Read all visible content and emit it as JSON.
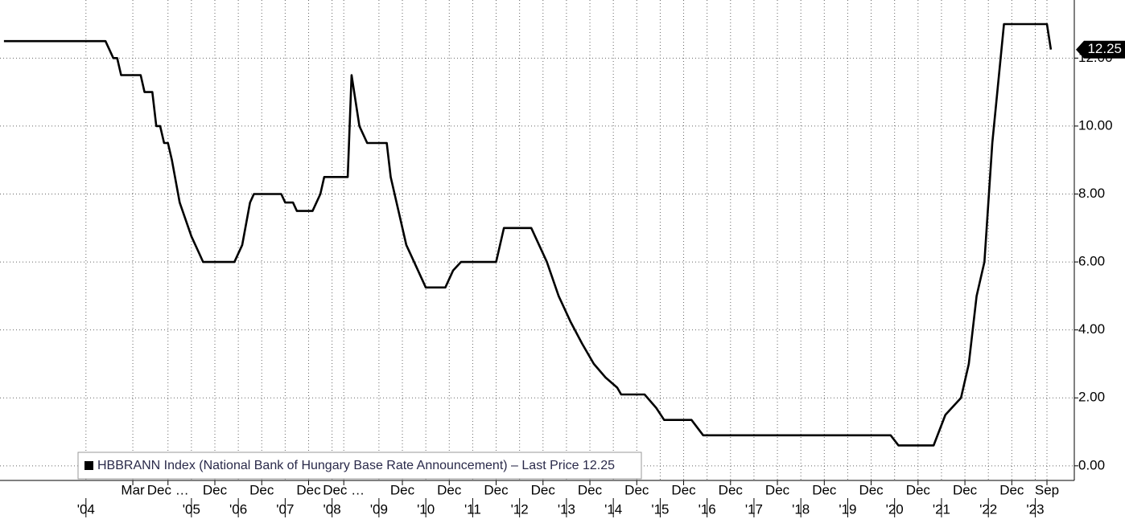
{
  "chart_data": {
    "type": "line",
    "series": [
      {
        "name": "HBBRANN Index (National Bank of Hungary Base Rate Announcement) – Last Price 12.25",
        "color": "#000000",
        "x": [
          "2001-06",
          "2003-08",
          "2003-10",
          "2003-11",
          "2003-12",
          "2004-05",
          "2004-06",
          "2004-08",
          "2004-09",
          "2004-10",
          "2004-11",
          "2004-12",
          "2005-01",
          "2005-03",
          "2005-06",
          "2005-08",
          "2005-09",
          "2006-05",
          "2006-07",
          "2006-09",
          "2006-10",
          "2007-05",
          "2007-06",
          "2007-08",
          "2007-09",
          "2008-01",
          "2008-03",
          "2008-04",
          "2008-10",
          "2008-11",
          "2009-01",
          "2009-03",
          "2009-08",
          "2009-09",
          "2009-11",
          "2010-01",
          "2010-03",
          "2010-06",
          "2010-11",
          "2011-01",
          "2011-03",
          "2011-12",
          "2012-02",
          "2012-09",
          "2013-01",
          "2013-04",
          "2013-07",
          "2013-10",
          "2014-01",
          "2014-04",
          "2014-07",
          "2014-08",
          "2015-02",
          "2015-05",
          "2015-07",
          "2016-02",
          "2016-05",
          "2020-05",
          "2020-07",
          "2021-04",
          "2021-07",
          "2021-11",
          "2022-01",
          "2022-03",
          "2022-05",
          "2022-07",
          "2022-10",
          "2023-09",
          "2023-10"
        ],
        "values": [
          12.5,
          12.5,
          12.0,
          12.0,
          11.5,
          11.5,
          11.0,
          11.0,
          10.0,
          10.0,
          9.5,
          9.5,
          9.0,
          7.75,
          6.75,
          6.25,
          6.0,
          6.0,
          6.5,
          7.75,
          8.0,
          8.0,
          7.75,
          7.75,
          7.5,
          7.5,
          8.0,
          8.5,
          8.5,
          11.5,
          10.0,
          9.5,
          9.5,
          8.5,
          7.5,
          6.5,
          6.0,
          5.25,
          5.25,
          5.75,
          6.0,
          6.0,
          7.0,
          7.0,
          6.0,
          5.0,
          4.25,
          3.6,
          3.0,
          2.6,
          2.3,
          2.1,
          2.1,
          1.7,
          1.35,
          1.35,
          0.9,
          0.9,
          0.6,
          0.6,
          1.5,
          2.0,
          3.0,
          5.0,
          6.0,
          9.5,
          13.0,
          13.0,
          12.25
        ]
      }
    ],
    "last_price": 12.25,
    "xlim": [
      "2001-05",
      "2024-04"
    ],
    "xticks": [
      {
        "value": "2004-03",
        "label": "Mar"
      },
      {
        "value": "2004-12",
        "label": "Dec …"
      },
      {
        "value": "2005-12",
        "label": "Dec"
      },
      {
        "value": "2006-12",
        "label": "Dec"
      },
      {
        "value": "2007-12",
        "label": "Dec"
      },
      {
        "value": "2008-09",
        "label": "Dec …"
      },
      {
        "value": "2009-12",
        "label": "Dec"
      },
      {
        "value": "2010-12",
        "label": "Dec"
      },
      {
        "value": "2011-12",
        "label": "Dec"
      },
      {
        "value": "2012-12",
        "label": "Dec"
      },
      {
        "value": "2013-12",
        "label": "Dec"
      },
      {
        "value": "2014-12",
        "label": "Dec"
      },
      {
        "value": "2015-12",
        "label": "Dec"
      },
      {
        "value": "2016-12",
        "label": "Dec"
      },
      {
        "value": "2017-12",
        "label": "Dec"
      },
      {
        "value": "2018-12",
        "label": "Dec"
      },
      {
        "value": "2019-12",
        "label": "Dec"
      },
      {
        "value": "2020-12",
        "label": "Dec"
      },
      {
        "value": "2021-12",
        "label": "Dec"
      },
      {
        "value": "2022-12",
        "label": "Dec"
      },
      {
        "value": "2023-09",
        "label": "Sep"
      }
    ],
    "year_ticks": [
      {
        "value": "2003-03",
        "label": "'04"
      },
      {
        "value": "2005-06",
        "label": "'05"
      },
      {
        "value": "2006-06",
        "label": "'06"
      },
      {
        "value": "2007-06",
        "label": "'07"
      },
      {
        "value": "2008-06",
        "label": "'08"
      },
      {
        "value": "2009-06",
        "label": "'09"
      },
      {
        "value": "2010-06",
        "label": "'10"
      },
      {
        "value": "2011-06",
        "label": "'11"
      },
      {
        "value": "2012-06",
        "label": "'12"
      },
      {
        "value": "2013-06",
        "label": "'13"
      },
      {
        "value": "2014-06",
        "label": "'14"
      },
      {
        "value": "2015-06",
        "label": "'15"
      },
      {
        "value": "2016-06",
        "label": "'16"
      },
      {
        "value": "2017-06",
        "label": "'17"
      },
      {
        "value": "2018-06",
        "label": "'18"
      },
      {
        "value": "2019-06",
        "label": "'19"
      },
      {
        "value": "2020-06",
        "label": "'20"
      },
      {
        "value": "2021-06",
        "label": "'21"
      },
      {
        "value": "2022-06",
        "label": "'22"
      },
      {
        "value": "2023-06",
        "label": "'23"
      }
    ],
    "ylim": [
      -0.43,
      13.71
    ],
    "yticks": [
      {
        "value": 0,
        "label": "0.00"
      },
      {
        "value": 2,
        "label": "2.00"
      },
      {
        "value": 4,
        "label": "4.00"
      },
      {
        "value": 6,
        "label": "6.00"
      },
      {
        "value": 8,
        "label": "8.00"
      },
      {
        "value": 10,
        "label": "10.00"
      },
      {
        "value": 12,
        "label": "12.00"
      }
    ],
    "grid": true
  }
}
